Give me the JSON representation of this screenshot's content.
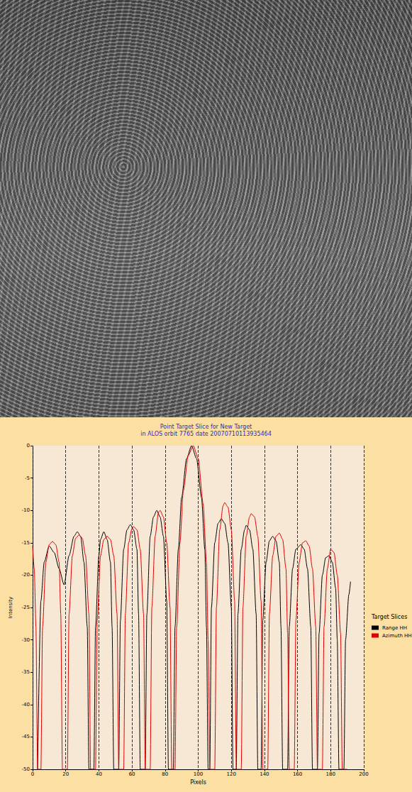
{
  "chart_data": {
    "type": "line",
    "title": "Point Target Slice for New Target",
    "subtitle": "in ALOS orbit 7765 date 20070710113935464",
    "x_label": "Pixels",
    "y_label": "Intensity",
    "legend_title": "Target Slices",
    "legend": "right",
    "grid": true,
    "xlim": [
      0,
      200
    ],
    "xticks": [
      0,
      20,
      40,
      60,
      80,
      100,
      120,
      140,
      160,
      180,
      200
    ],
    "ylim": [
      -50,
      0
    ],
    "yticks": [
      -50,
      -45,
      -40,
      -35,
      -30,
      -25,
      -20,
      -15,
      -10,
      -5,
      0
    ],
    "series": [
      {
        "name": "Range HH",
        "color": "#000000",
        "x": [
          3,
          5,
          7,
          10,
          13,
          16,
          19,
          22,
          25,
          27,
          29,
          31,
          33,
          34,
          37,
          38,
          40,
          41,
          43,
          45,
          47,
          48,
          49,
          52,
          53,
          55,
          57,
          59,
          61,
          63,
          64,
          65,
          68,
          69,
          71,
          73,
          75,
          77,
          79,
          81,
          82,
          85,
          86,
          88,
          90,
          93,
          96,
          99,
          102,
          104,
          105,
          106,
          107,
          108,
          110,
          112,
          114,
          116,
          118,
          120,
          121,
          123,
          124,
          126,
          128,
          129,
          131,
          133,
          135,
          136,
          138,
          139,
          141,
          143,
          145,
          147,
          149,
          150,
          151,
          154,
          155,
          157,
          159,
          162,
          164,
          166,
          168,
          169,
          172,
          173,
          175,
          177,
          179,
          181,
          183,
          184,
          185,
          188,
          189,
          191,
          192
        ],
        "values": [
          -50,
          -24,
          -18,
          -15.5,
          -16.5,
          -19,
          -21.5,
          -17,
          -14,
          -13.3,
          -14,
          -18,
          -28,
          -50,
          -50,
          -28,
          -17,
          -14.5,
          -13.3,
          -14.5,
          -18,
          -28,
          -50,
          -50,
          -27,
          -16,
          -13,
          -12.2,
          -13,
          -16,
          -26,
          -50,
          -50,
          -26,
          -14,
          -11,
          -10,
          -11,
          -14,
          -24,
          -50,
          -50,
          -28,
          -16,
          -8,
          -2,
          0,
          -2,
          -8,
          -16,
          -28,
          -50,
          -50,
          -25,
          -15,
          -12,
          -11.3,
          -12,
          -15,
          -25,
          -50,
          -50,
          -26,
          -16,
          -13,
          -12.3,
          -13,
          -16,
          -26,
          -50,
          -50,
          -27,
          -18,
          -14.7,
          -14,
          -14.7,
          -18,
          -28,
          -50,
          -50,
          -28,
          -19,
          -16,
          -15.3,
          -16,
          -19,
          -28,
          -50,
          -50,
          -29,
          -20,
          -17.3,
          -17,
          -18,
          -22,
          -30,
          -50,
          -50,
          -30,
          -23,
          -21
        ]
      },
      {
        "name": "Azimuth HH",
        "color": "#e00000",
        "x": [
          0,
          1,
          2,
          3,
          5,
          6,
          8,
          10,
          12,
          14,
          16,
          17,
          18,
          21,
          22,
          24,
          26,
          28,
          30,
          32,
          34,
          35,
          38,
          39,
          41,
          43,
          45,
          47,
          49,
          51,
          52,
          55,
          56,
          58,
          60,
          61,
          63,
          65,
          67,
          68,
          71,
          72,
          74,
          76,
          77,
          79,
          81,
          83,
          84,
          86,
          87,
          89,
          91,
          94,
          97,
          100,
          103,
          105,
          106,
          107,
          110,
          111,
          113,
          115,
          116,
          118,
          120,
          122,
          123,
          126,
          127,
          129,
          131,
          132,
          134,
          136,
          138,
          139,
          142,
          143,
          145,
          147,
          149,
          151,
          153,
          154,
          155,
          158,
          159,
          161,
          163,
          165,
          167,
          169,
          171,
          172,
          175,
          176,
          178,
          180,
          182,
          184,
          186,
          187,
          190
        ],
        "values": [
          -15.5,
          -19,
          -28,
          -50,
          -50,
          -28,
          -18,
          -15.3,
          -14.8,
          -15.3,
          -18,
          -26,
          -50,
          -50,
          -26,
          -17,
          -14.3,
          -13.8,
          -14.3,
          -17,
          -26,
          -50,
          -50,
          -27,
          -17,
          -14.5,
          -14,
          -14.5,
          -17,
          -26,
          -50,
          -50,
          -26,
          -15,
          -12.8,
          -12.5,
          -13,
          -16,
          -26,
          -50,
          -50,
          -25,
          -14,
          -10.3,
          -10,
          -11,
          -15,
          -25,
          -50,
          -50,
          -28,
          -15,
          -7,
          -1.5,
          0,
          -2,
          -9,
          -18,
          -30,
          -50,
          -50,
          -25,
          -13,
          -9.3,
          -8.8,
          -9.5,
          -13,
          -24,
          -50,
          -50,
          -25,
          -14,
          -11,
          -10.5,
          -11,
          -14,
          -24,
          -50,
          -50,
          -26,
          -17,
          -14,
          -13.5,
          -14.5,
          -19,
          -29,
          -50,
          -50,
          -27,
          -18,
          -15,
          -14.7,
          -15.5,
          -19,
          -28,
          -50,
          -50,
          -28,
          -19,
          -16,
          -16.5,
          -20,
          -29,
          -50,
          -50
        ]
      }
    ]
  }
}
